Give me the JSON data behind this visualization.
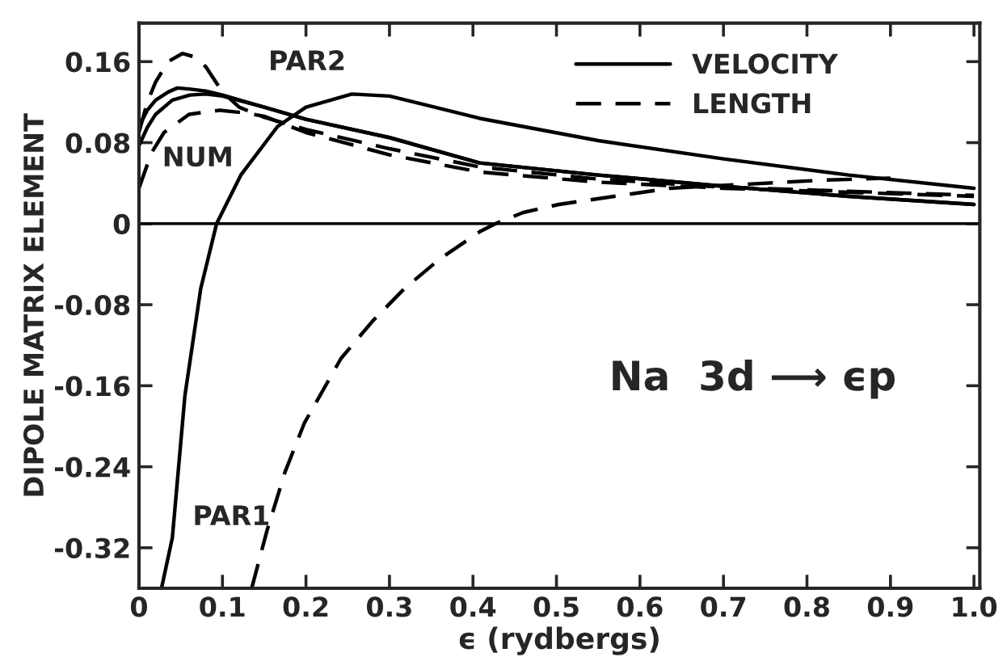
{
  "chart_data": {
    "type": "line",
    "xlabel": "ϵ (rydbergs)",
    "ylabel": "DIPOLE MATRIX ELEMENT",
    "xlim": [
      0,
      1.007
    ],
    "ylim": [
      -0.36,
      0.198
    ],
    "xticks": [
      0,
      0.1,
      0.2,
      0.3,
      0.4,
      0.5,
      0.6,
      0.7,
      0.8,
      0.9,
      {
        "value": 1.0,
        "label": "1.0"
      }
    ],
    "yticks": [
      0.16,
      0.08,
      0,
      -0.08,
      -0.16,
      -0.24,
      -0.32
    ],
    "grid": false,
    "legend": "top right",
    "marker": "none",
    "series": [
      {
        "name": "VELOCITY",
        "color": "#000000",
        "line_style": "solid",
        "x": [
          0,
          0.01,
          0.02,
          0.035,
          0.046,
          0.06,
          0.08,
          0.1,
          0.15,
          0.2,
          0.3,
          0.408,
          0.55,
          0.7,
          0.85,
          1.0
        ],
        "values": [
          0.096,
          0.112,
          0.122,
          0.13,
          0.134,
          0.133,
          0.131,
          0.127,
          0.115,
          0.103,
          0.085,
          0.06,
          0.048,
          0.037,
          0.027,
          0.019
        ]
      },
      {
        "color": "#000000",
        "line_style": "solid",
        "x": [
          0,
          0.01,
          0.02,
          0.04,
          0.061,
          0.08,
          0.1,
          0.15,
          0.2,
          0.3,
          0.408,
          0.55,
          0.7,
          0.85,
          1.0
        ],
        "values": [
          0.077,
          0.095,
          0.108,
          0.122,
          0.127,
          0.128,
          0.126,
          0.115,
          0.103,
          0.085,
          0.06,
          0.048,
          0.037,
          0.027,
          0.019
        ]
      },
      {
        "color": "#000000",
        "line_style": "solid",
        "x": [
          0.027,
          0.04,
          0.055,
          0.074,
          0.093,
          0.122,
          0.166,
          0.2,
          0.255,
          0.3,
          0.408,
          0.55,
          0.7,
          0.85,
          1.0
        ],
        "values": [
          -0.36,
          -0.31,
          -0.17,
          -0.064,
          0,
          0.048,
          0.096,
          0.115,
          0.128,
          0.126,
          0.104,
          0.082,
          0.064,
          0.048,
          0.035
        ]
      },
      {
        "name": "LENGTH",
        "color": "#000000",
        "line_style": "dashed",
        "x": [
          0,
          0.01,
          0.02,
          0.035,
          0.052,
          0.065,
          0.08,
          0.1,
          0.12,
          0.15,
          0.2,
          0.3,
          0.408,
          0.55,
          0.7,
          0.85,
          1.0
        ],
        "values": [
          0.09,
          0.12,
          0.14,
          0.16,
          0.168,
          0.165,
          0.155,
          0.13,
          0.115,
          0.105,
          0.093,
          0.074,
          0.056,
          0.044,
          0.036,
          0.032,
          0.028
        ]
      },
      {
        "color": "#000000",
        "line_style": "dashed",
        "x": [
          0,
          0.015,
          0.03,
          0.06,
          0.097,
          0.13,
          0.15,
          0.2,
          0.3,
          0.408,
          0.55,
          0.7,
          0.85,
          1.0
        ],
        "values": [
          0.035,
          0.07,
          0.09,
          0.108,
          0.112,
          0.109,
          0.106,
          0.09,
          0.068,
          0.051,
          0.041,
          0.035,
          0.031,
          0.027
        ]
      },
      {
        "color": "#000000",
        "line_style": "dashed",
        "x": [
          0.135,
          0.153,
          0.175,
          0.198,
          0.242,
          0.28,
          0.318,
          0.36,
          0.408,
          0.427,
          0.46,
          0.503,
          0.636,
          0.82,
          0.9
        ],
        "values": [
          -0.36,
          -0.304,
          -0.245,
          -0.197,
          -0.133,
          -0.096,
          -0.064,
          -0.035,
          -0.008,
          0,
          0.011,
          0.019,
          0.035,
          0.043,
          0.045
        ]
      }
    ],
    "ref_lines": [
      {
        "axis": "y",
        "value": 0,
        "color": "#000000",
        "line_style": "solid"
      }
    ],
    "annotations": [
      "PAR2",
      "NUM",
      "PAR1",
      "Na  3d ⟶ ϵp"
    ]
  }
}
